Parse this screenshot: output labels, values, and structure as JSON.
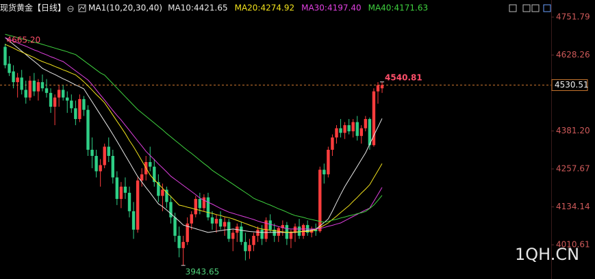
{
  "chart_data": {
    "type": "candlestick",
    "title": "现货黄金【日线】",
    "indicator": "MA1(10,20,30,40)",
    "watermark": "1QH.CN",
    "ylim": [
      3899.4,
      4807.4
    ],
    "yticks": [
      4751.79,
      4628.26,
      {
        "value": 4381.2,
        "label": "4381.20"
      },
      4257.67,
      4134.14,
      4010.61
    ],
    "up_color": "#ff3d3d",
    "down_color": "#2fcf86",
    "max_label": {
      "value": 4665.2,
      "label": "4665.20"
    },
    "candles": [
      {
        "open": 4655,
        "high": 4665.2,
        "low": 4585,
        "close": 4595
      },
      {
        "open": 4600,
        "high": 4625,
        "low": 4560,
        "close": 4570
      },
      {
        "open": 4575,
        "high": 4595,
        "low": 4520,
        "close": 4540
      },
      {
        "open": 4540,
        "high": 4570,
        "low": 4490,
        "close": 4555
      },
      {
        "open": 4555,
        "high": 4580,
        "low": 4500,
        "close": 4515
      },
      {
        "open": 4515,
        "high": 4545,
        "low": 4470,
        "close": 4490
      },
      {
        "open": 4490,
        "high": 4560,
        "low": 4480,
        "close": 4545
      },
      {
        "open": 4545,
        "high": 4570,
        "low": 4495,
        "close": 4510
      },
      {
        "open": 4510,
        "high": 4550,
        "low": 4480,
        "close": 4540
      },
      {
        "open": 4540,
        "high": 4565,
        "low": 4510,
        "close": 4520
      },
      {
        "open": 4520,
        "high": 4550,
        "low": 4490,
        "close": 4505
      },
      {
        "open": 4505,
        "high": 4520,
        "low": 4440,
        "close": 4460
      },
      {
        "open": 4460,
        "high": 4500,
        "low": 4400,
        "close": 4490
      },
      {
        "open": 4490,
        "high": 4530,
        "low": 4460,
        "close": 4515
      },
      {
        "open": 4515,
        "high": 4530,
        "low": 4480,
        "close": 4490
      },
      {
        "open": 4490,
        "high": 4510,
        "low": 4440,
        "close": 4480
      },
      {
        "open": 4480,
        "high": 4500,
        "low": 4440,
        "close": 4455
      },
      {
        "open": 4455,
        "high": 4480,
        "low": 4400,
        "close": 4420
      },
      {
        "open": 4420,
        "high": 4500,
        "low": 4410,
        "close": 4485
      },
      {
        "open": 4485,
        "high": 4495,
        "low": 4430,
        "close": 4450
      },
      {
        "open": 4450,
        "high": 4465,
        "low": 4300,
        "close": 4320
      },
      {
        "open": 4320,
        "high": 4360,
        "low": 4260,
        "close": 4300
      },
      {
        "open": 4300,
        "high": 4320,
        "low": 4230,
        "close": 4250
      },
      {
        "open": 4250,
        "high": 4290,
        "low": 4200,
        "close": 4270
      },
      {
        "open": 4270,
        "high": 4340,
        "low": 4260,
        "close": 4330
      },
      {
        "open": 4330,
        "high": 4360,
        "low": 4280,
        "close": 4300
      },
      {
        "open": 4300,
        "high": 4320,
        "low": 4210,
        "close": 4230
      },
      {
        "open": 4230,
        "high": 4250,
        "low": 4140,
        "close": 4160
      },
      {
        "open": 4160,
        "high": 4215,
        "low": 4130,
        "close": 4200
      },
      {
        "open": 4200,
        "high": 4230,
        "low": 4160,
        "close": 4180
      },
      {
        "open": 4180,
        "high": 4200,
        "low": 4100,
        "close": 4120
      },
      {
        "open": 4120,
        "high": 4150,
        "low": 4030,
        "close": 4060
      },
      {
        "open": 4060,
        "high": 4230,
        "low": 4050,
        "close": 4220
      },
      {
        "open": 4220,
        "high": 4260,
        "low": 4200,
        "close": 4240
      },
      {
        "open": 4240,
        "high": 4300,
        "low": 4220,
        "close": 4280
      },
      {
        "open": 4280,
        "high": 4330,
        "low": 4250,
        "close": 4265
      },
      {
        "open": 4265,
        "high": 4290,
        "low": 4200,
        "close": 4215
      },
      {
        "open": 4215,
        "high": 4240,
        "low": 4150,
        "close": 4170
      },
      {
        "open": 4170,
        "high": 4210,
        "low": 4120,
        "close": 4190
      },
      {
        "open": 4190,
        "high": 4200,
        "low": 4130,
        "close": 4150
      },
      {
        "open": 4150,
        "high": 4170,
        "low": 4080,
        "close": 4100
      },
      {
        "open": 4100,
        "high": 4115,
        "low": 4020,
        "close": 4040
      },
      {
        "open": 4040,
        "high": 4070,
        "low": 3970,
        "close": 4000
      },
      {
        "open": 4000,
        "high": 4040,
        "low": 3943.65,
        "close": 4020
      },
      {
        "open": 4020,
        "high": 4100,
        "low": 4010,
        "close": 4080
      },
      {
        "open": 4080,
        "high": 4120,
        "low": 4060,
        "close": 4110
      },
      {
        "open": 4110,
        "high": 4170,
        "low": 4100,
        "close": 4160
      },
      {
        "open": 4160,
        "high": 4180,
        "low": 4110,
        "close": 4130
      },
      {
        "open": 4130,
        "high": 4175,
        "low": 4120,
        "close": 4165
      },
      {
        "open": 4165,
        "high": 4180,
        "low": 4090,
        "close": 4100
      },
      {
        "open": 4100,
        "high": 4120,
        "low": 4060,
        "close": 4080
      },
      {
        "open": 4080,
        "high": 4110,
        "low": 4050,
        "close": 4095
      },
      {
        "open": 4095,
        "high": 4120,
        "low": 4060,
        "close": 4070
      },
      {
        "open": 4070,
        "high": 4100,
        "low": 4040,
        "close": 4085
      },
      {
        "open": 4085,
        "high": 4095,
        "low": 4020,
        "close": 4030
      },
      {
        "open": 4030,
        "high": 4060,
        "low": 3990,
        "close": 4050
      },
      {
        "open": 4050,
        "high": 4080,
        "low": 4020,
        "close": 4070
      },
      {
        "open": 4070,
        "high": 4085,
        "low": 4010,
        "close": 4020
      },
      {
        "open": 4020,
        "high": 4050,
        "low": 3960,
        "close": 3990
      },
      {
        "open": 3990,
        "high": 4030,
        "low": 3965,
        "close": 4010
      },
      {
        "open": 4010,
        "high": 4050,
        "low": 3990,
        "close": 4040
      },
      {
        "open": 4040,
        "high": 4070,
        "low": 4020,
        "close": 4060
      },
      {
        "open": 4060,
        "high": 4075,
        "low": 4010,
        "close": 4030
      },
      {
        "open": 4030,
        "high": 4100,
        "low": 4020,
        "close": 4090
      },
      {
        "open": 4090,
        "high": 4110,
        "low": 4050,
        "close": 4060
      },
      {
        "open": 4060,
        "high": 4080,
        "low": 4020,
        "close": 4040
      },
      {
        "open": 4040,
        "high": 4070,
        "low": 4020,
        "close": 4065
      },
      {
        "open": 4065,
        "high": 4090,
        "low": 4040,
        "close": 4075
      },
      {
        "open": 4075,
        "high": 4085,
        "low": 4010,
        "close": 4030
      },
      {
        "open": 4030,
        "high": 4060,
        "low": 4000,
        "close": 4050
      },
      {
        "open": 4050,
        "high": 4080,
        "low": 4020,
        "close": 4070
      },
      {
        "open": 4070,
        "high": 4095,
        "low": 4030,
        "close": 4040
      },
      {
        "open": 4040,
        "high": 4080,
        "low": 4030,
        "close": 4075
      },
      {
        "open": 4075,
        "high": 4090,
        "low": 4040,
        "close": 4050
      },
      {
        "open": 4050,
        "high": 4070,
        "low": 4035,
        "close": 4060
      },
      {
        "open": 4060,
        "high": 4080,
        "low": 4040,
        "close": 4055
      },
      {
        "open": 4055,
        "high": 4265,
        "low": 4050,
        "close": 4255
      },
      {
        "open": 4255,
        "high": 4275,
        "low": 4210,
        "close": 4240
      },
      {
        "open": 4240,
        "high": 4330,
        "low": 4230,
        "close": 4320
      },
      {
        "open": 4320,
        "high": 4370,
        "low": 4300,
        "close": 4360
      },
      {
        "open": 4360,
        "high": 4400,
        "low": 4340,
        "close": 4390
      },
      {
        "open": 4390,
        "high": 4420,
        "low": 4360,
        "close": 4375
      },
      {
        "open": 4375,
        "high": 4410,
        "low": 4355,
        "close": 4400
      },
      {
        "open": 4400,
        "high": 4420,
        "low": 4370,
        "close": 4380
      },
      {
        "open": 4380,
        "high": 4420,
        "low": 4360,
        "close": 4410
      },
      {
        "open": 4410,
        "high": 4430,
        "low": 4350,
        "close": 4365
      },
      {
        "open": 4365,
        "high": 4400,
        "low": 4340,
        "close": 4390
      },
      {
        "open": 4390,
        "high": 4430,
        "low": 4380,
        "close": 4420
      },
      {
        "open": 4420,
        "high": 4425,
        "low": 4320,
        "close": 4335
      },
      {
        "open": 4335,
        "high": 4520,
        "low": 4330,
        "close": 4510
      },
      {
        "open": 4510,
        "high": 4540,
        "low": 4470,
        "close": 4530
      },
      {
        "open": 4520,
        "high": 4540.81,
        "low": 4505,
        "close": 4530.51
      }
    ],
    "series": [
      {
        "name": "MA10:4421.65",
        "color": "#e8e8e8",
        "values": [
          4685,
          4674,
          4663,
          4652,
          4641,
          4630,
          4619,
          4608,
          4597,
          4585,
          4578,
          4571,
          4565,
          4558,
          4551,
          4545,
          4538,
          4531,
          4525,
          4518,
          4497,
          4476,
          4455,
          4434,
          4413,
          4392,
          4370,
          4348,
          4325,
          4302,
          4279,
          4256,
          4233,
          4215,
          4197,
          4180,
          4162,
          4144,
          4135,
          4124,
          4112,
          4100,
          4088,
          4075,
          4071,
          4067,
          4063,
          4059,
          4055,
          4051,
          4053,
          4055,
          4057,
          4059,
          4060,
          4062,
          4060,
          4058,
          4056,
          4054,
          4053,
          4052,
          4051,
          4051,
          4051,
          4051,
          4051,
          4051,
          4051,
          4051,
          4051,
          4053,
          4055,
          4057,
          4059,
          4062,
          4072,
          4083,
          4095,
          4120,
          4148,
          4175,
          4200,
          4222,
          4244,
          4266,
          4288,
          4310,
          4338,
          4366,
          4394,
          4421.65
        ]
      },
      {
        "name": "MA20:4274.92",
        "color": "#f2e21c",
        "values": [
          4663,
          4657,
          4651,
          4644,
          4638,
          4632,
          4626,
          4620,
          4613,
          4607,
          4602,
          4597,
          4591,
          4586,
          4580,
          4575,
          4569,
          4564,
          4553,
          4541,
          4528,
          4514,
          4500,
          4487,
          4473,
          4453,
          4433,
          4413,
          4393,
          4373,
          4350,
          4330,
          4307,
          4284,
          4261,
          4238,
          4222,
          4209,
          4195,
          4181,
          4168,
          4154,
          4140,
          4137,
          4133,
          4130,
          4126,
          4123,
          4119,
          4116,
          4113,
          4109,
          4106,
          4102,
          4099,
          4095,
          4090,
          4085,
          4080,
          4075,
          4070,
          4065,
          4062,
          4060,
          4058,
          4057,
          4055,
          4053,
          4051,
          4052,
          4052,
          4053,
          4054,
          4054,
          4055,
          4060,
          4067,
          4074,
          4082,
          4093,
          4104,
          4116,
          4127,
          4138,
          4152,
          4165,
          4179,
          4192,
          4206,
          4229,
          4252,
          4274.92
        ]
      },
      {
        "name": "MA30:4197.40",
        "color": "#e040e0",
        "values": [
          4685,
          4679,
          4674,
          4668,
          4662,
          4657,
          4651,
          4645,
          4640,
          4634,
          4629,
          4623,
          4618,
          4612,
          4607,
          4597,
          4587,
          4577,
          4567,
          4557,
          4547,
          4532,
          4515,
          4498,
          4482,
          4465,
          4448,
          4432,
          4417,
          4400,
          4383,
          4366,
          4349,
          4332,
          4315,
          4301,
          4288,
          4274,
          4261,
          4248,
          4234,
          4224,
          4214,
          4204,
          4194,
          4184,
          4174,
          4163,
          4156,
          4149,
          4143,
          4136,
          4129,
          4123,
          4117,
          4113,
          4109,
          4105,
          4101,
          4097,
          4093,
          4088,
          4084,
          4081,
          4077,
          4074,
          4070,
          4067,
          4063,
          4062,
          4062,
          4062,
          4062,
          4062,
          4062,
          4062,
          4064,
          4067,
          4071,
          4074,
          4078,
          4082,
          4089,
          4096,
          4103,
          4110,
          4117,
          4124,
          4130,
          4152,
          4175,
          4197.4
        ]
      },
      {
        "name": "MA40:4171.63",
        "color": "#3fd23f",
        "values": [
          4696,
          4692,
          4689,
          4685,
          4681,
          4678,
          4674,
          4670,
          4667,
          4663,
          4659,
          4655,
          4651,
          4647,
          4643,
          4639,
          4634,
          4630,
          4620,
          4610,
          4600,
          4590,
          4580,
          4570,
          4563,
          4549,
          4535,
          4521,
          4507,
          4493,
          4479,
          4465,
          4451,
          4440,
          4429,
          4418,
          4407,
          4396,
          4385,
          4373,
          4362,
          4351,
          4340,
          4329,
          4318,
          4308,
          4297,
          4286,
          4275,
          4265,
          4253,
          4244,
          4235,
          4226,
          4217,
          4208,
          4199,
          4190,
          4181,
          4172,
          4162,
          4156,
          4151,
          4145,
          4140,
          4134,
          4128,
          4123,
          4117,
          4111,
          4106,
          4103,
          4100,
          4096,
          4093,
          4090,
          4087,
          4084,
          4087,
          4091,
          4094,
          4098,
          4101,
          4105,
          4108,
          4112,
          4115,
          4119,
          4129,
          4140,
          4155,
          4171.63
        ]
      }
    ]
  }
}
